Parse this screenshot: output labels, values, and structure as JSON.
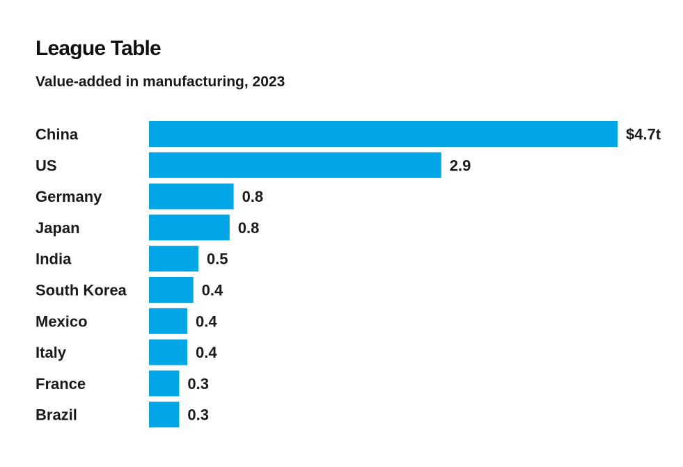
{
  "title": "League Table",
  "subtitle": "Value-added in manufacturing, 2023",
  "colors": {
    "bar": "#00a6e6",
    "text": "#1a1a1a",
    "background": "#ffffff"
  },
  "chart_data": {
    "type": "bar",
    "orientation": "horizontal",
    "title": "League Table",
    "subtitle": "Value-added in manufacturing, 2023",
    "categories": [
      "China",
      "US",
      "Germany",
      "Japan",
      "India",
      "South Korea",
      "Mexico",
      "Italy",
      "France",
      "Brazil"
    ],
    "values": [
      4.65,
      2.9,
      0.84,
      0.8,
      0.49,
      0.44,
      0.38,
      0.38,
      0.3,
      0.3
    ],
    "value_labels": [
      "$4.7t",
      "2.9",
      "0.8",
      "0.8",
      "0.5",
      "0.4",
      "0.4",
      "0.4",
      "0.3",
      "0.3"
    ],
    "xlabel": "",
    "ylabel": "",
    "xlim": [
      0,
      4.65
    ],
    "grid": false,
    "legend": "none"
  }
}
